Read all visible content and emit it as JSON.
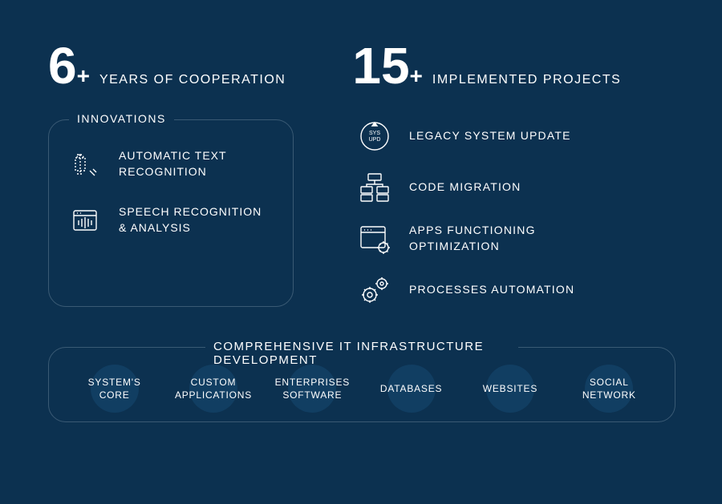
{
  "colors": {
    "background": "#0c3150",
    "text": "#ffffff",
    "border": "#3a5a74",
    "circle_bg": "#113e62"
  },
  "stats": [
    {
      "number": "6",
      "plus": "+",
      "label": "YEARS OF COOPERATION"
    },
    {
      "number": "15",
      "plus": "+",
      "label": "IMPLEMENTED PROJECTS"
    }
  ],
  "innovations": {
    "title": "INNOVATIONS",
    "items": [
      {
        "text": "AUTOMATIC TEXT\nRECOGNITION"
      },
      {
        "text": "SPEECH RECOGNITION\n& ANALYSIS"
      }
    ]
  },
  "services": [
    {
      "text": "LEGACY SYSTEM UPDATE"
    },
    {
      "text": "CODE MIGRATION"
    },
    {
      "text": "APPS FUNCTIONING\nOPTIMIZATION"
    },
    {
      "text": "PROCESSES AUTOMATION"
    }
  ],
  "infrastructure": {
    "title": "COMPREHENSIVE IT INFRASTRUCTURE DEVELOPMENT",
    "items": [
      "SYSTEM'S\nCORE",
      "CUSTOM\nAPPLICATIONS",
      "ENTERPRISES\nSOFTWARE",
      "DATABASES",
      "WEBSITES",
      "SOCIAL\nNETWORK"
    ]
  }
}
